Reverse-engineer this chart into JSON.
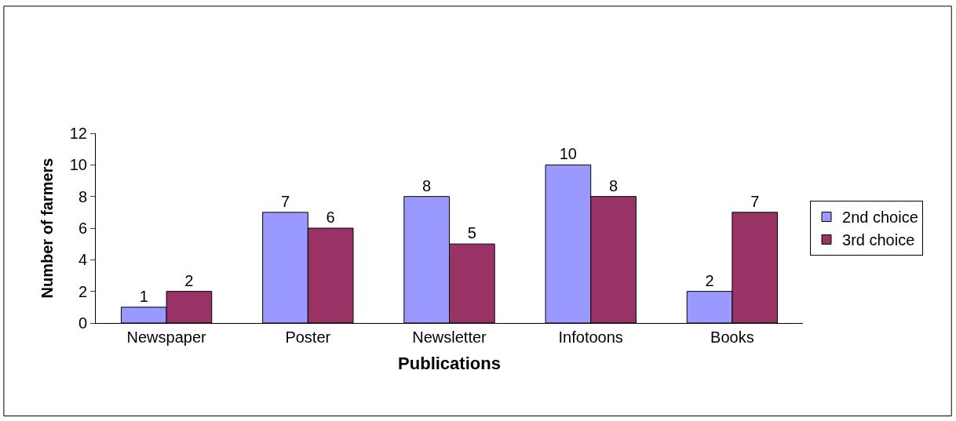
{
  "chart_data": {
    "type": "bar",
    "xlabel": "Publications",
    "ylabel": "Number of farmers",
    "categories": [
      "Newspaper",
      "Poster",
      "Newsletter",
      "Infotoons",
      "Books"
    ],
    "series": [
      {
        "name": "2nd choice",
        "color": "#9999ff",
        "values": [
          1,
          7,
          8,
          10,
          2
        ]
      },
      {
        "name": "3rd choice",
        "color": "#993366",
        "values": [
          2,
          6,
          5,
          8,
          7
        ]
      }
    ],
    "ylim": [
      0,
      12
    ],
    "yticks": [
      0,
      2,
      4,
      6,
      8,
      10,
      12
    ],
    "legend": "right",
    "data_labels": true
  }
}
